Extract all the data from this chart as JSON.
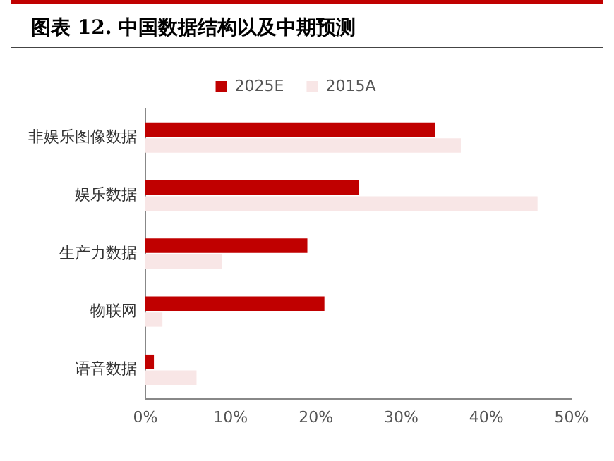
{
  "chart_data": {
    "type": "bar",
    "orientation": "horizontal",
    "title": "图表 12. 中国数据结构以及中期预测",
    "categories": [
      "非娱乐图像数据",
      "娱乐数据",
      "生产力数据",
      "物联网",
      "语音数据"
    ],
    "series": [
      {
        "name": "2025E",
        "color": "#c00000",
        "values": [
          34,
          25,
          19,
          21,
          1
        ]
      },
      {
        "name": "2015A",
        "color": "#f8e6e6",
        "values": [
          37,
          46,
          9,
          2,
          6
        ]
      }
    ],
    "xlim": [
      0,
      50
    ],
    "xticks": [
      {
        "value": 0,
        "label": "0%"
      },
      {
        "value": 10,
        "label": "10%"
      },
      {
        "value": 20,
        "label": "20%"
      },
      {
        "value": 30,
        "label": "30%"
      },
      {
        "value": 40,
        "label": "40%"
      },
      {
        "value": 50,
        "label": "50%"
      }
    ],
    "grid": false,
    "legend": "top"
  }
}
